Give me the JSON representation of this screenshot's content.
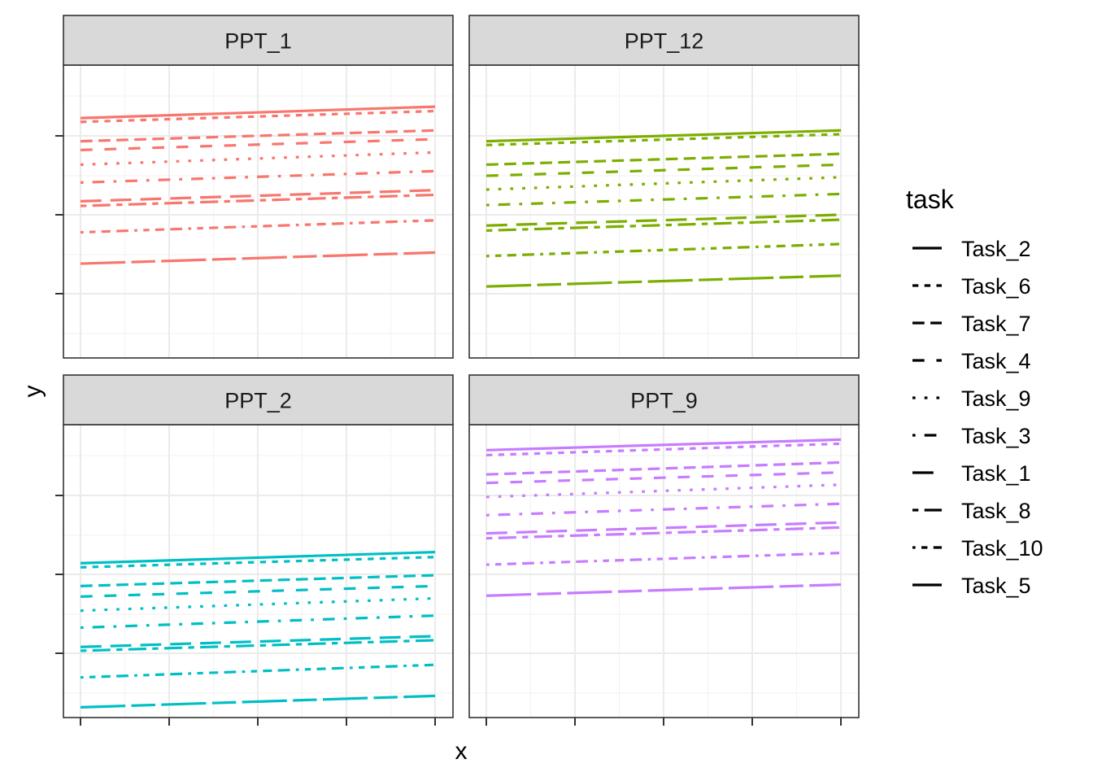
{
  "chart_data": {
    "type": "line",
    "xlabel": "x",
    "ylabel": "y",
    "grid": true,
    "legend_title": "task",
    "legend_placement": "right",
    "xlim": [
      0,
      1
    ],
    "ylim": [
      0,
      1
    ],
    "legend": [
      {
        "name": "Task_2",
        "linetype": "solid"
      },
      {
        "name": "Task_6",
        "linetype": "22"
      },
      {
        "name": "Task_7",
        "linetype": "42"
      },
      {
        "name": "Task_4",
        "linetype": "44"
      },
      {
        "name": "Task_9",
        "linetype": "13"
      },
      {
        "name": "Task_3",
        "linetype": "1343"
      },
      {
        "name": "Task_1",
        "linetype": "73"
      },
      {
        "name": "Task_8",
        "linetype": "2262"
      },
      {
        "name": "Task_10",
        "linetype": "12223242"
      },
      {
        "name": "Task_5",
        "linetype": "F282"
      }
    ],
    "panels": [
      {
        "label": "PPT_1",
        "color": "#F8766D",
        "series": [
          {
            "task": "Task_2",
            "y": [
              0.819,
              0.858
            ]
          },
          {
            "task": "Task_6",
            "y": [
              0.806,
              0.843
            ]
          },
          {
            "task": "Task_7",
            "y": [
              0.74,
              0.777
            ]
          },
          {
            "task": "Task_4",
            "y": [
              0.71,
              0.747
            ]
          },
          {
            "task": "Task_9",
            "y": [
              0.66,
              0.702
            ]
          },
          {
            "task": "Task_3",
            "y": [
              0.599,
              0.638
            ]
          },
          {
            "task": "Task_1",
            "y": [
              0.535,
              0.573
            ]
          },
          {
            "task": "Task_8",
            "y": [
              0.519,
              0.557
            ]
          },
          {
            "task": "Task_10",
            "y": [
              0.429,
              0.47
            ]
          },
          {
            "task": "Task_5",
            "y": [
              0.322,
              0.36
            ]
          }
        ]
      },
      {
        "label": "PPT_12",
        "color": "#7CAE00",
        "series": [
          {
            "task": "Task_2",
            "y": [
              0.74,
              0.777
            ]
          },
          {
            "task": "Task_6",
            "y": [
              0.727,
              0.764
            ]
          },
          {
            "task": "Task_7",
            "y": [
              0.66,
              0.697
            ]
          },
          {
            "task": "Task_4",
            "y": [
              0.622,
              0.66
            ]
          },
          {
            "task": "Task_9",
            "y": [
              0.575,
              0.617
            ]
          },
          {
            "task": "Task_3",
            "y": [
              0.522,
              0.56
            ]
          },
          {
            "task": "Task_1",
            "y": [
              0.452,
              0.489
            ]
          },
          {
            "task": "Task_8",
            "y": [
              0.435,
              0.472
            ]
          },
          {
            "task": "Task_10",
            "y": [
              0.348,
              0.389
            ]
          },
          {
            "task": "Task_5",
            "y": [
              0.244,
              0.281
            ]
          }
        ]
      },
      {
        "label": "PPT_2",
        "color": "#00BFC4",
        "series": [
          {
            "task": "Task_2",
            "y": [
              0.527,
              0.565
            ]
          },
          {
            "task": "Task_6",
            "y": [
              0.513,
              0.548
            ]
          },
          {
            "task": "Task_7",
            "y": [
              0.449,
              0.486
            ]
          },
          {
            "task": "Task_4",
            "y": [
              0.413,
              0.449
            ]
          },
          {
            "task": "Task_9",
            "y": [
              0.365,
              0.407
            ]
          },
          {
            "task": "Task_3",
            "y": [
              0.307,
              0.348
            ]
          },
          {
            "task": "Task_1",
            "y": [
              0.241,
              0.278
            ]
          },
          {
            "task": "Task_8",
            "y": [
              0.228,
              0.264
            ]
          },
          {
            "task": "Task_10",
            "y": [
              0.137,
              0.18
            ]
          },
          {
            "task": "Task_5",
            "y": [
              0.035,
              0.074
            ]
          }
        ]
      },
      {
        "label": "PPT_9",
        "color": "#C77CFF",
        "series": [
          {
            "task": "Task_2",
            "y": [
              0.913,
              0.949
            ]
          },
          {
            "task": "Task_6",
            "y": [
              0.896,
              0.935
            ]
          },
          {
            "task": "Task_7",
            "y": [
              0.83,
              0.871
            ]
          },
          {
            "task": "Task_4",
            "y": [
              0.801,
              0.837
            ]
          },
          {
            "task": "Task_9",
            "y": [
              0.753,
              0.795
            ]
          },
          {
            "task": "Task_3",
            "y": [
              0.691,
              0.73
            ]
          },
          {
            "task": "Task_1",
            "y": [
              0.629,
              0.666
            ]
          },
          {
            "task": "Task_8",
            "y": [
              0.612,
              0.649
            ]
          },
          {
            "task": "Task_10",
            "y": [
              0.522,
              0.562
            ]
          },
          {
            "task": "Task_5",
            "y": [
              0.416,
              0.454
            ]
          }
        ]
      }
    ]
  }
}
